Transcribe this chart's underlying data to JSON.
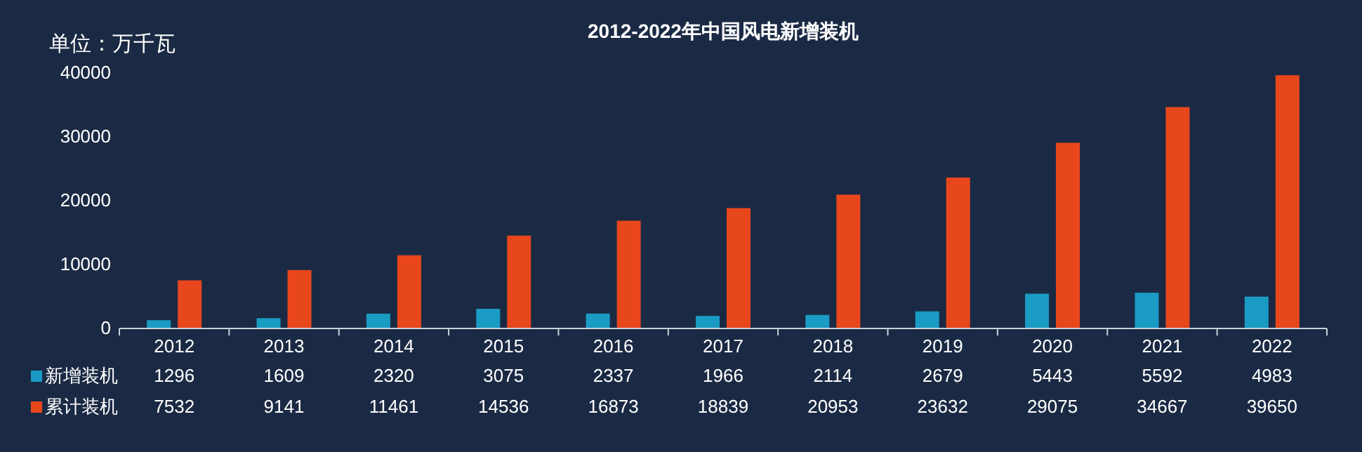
{
  "chart_data": {
    "type": "bar",
    "title": "2012-2022年中国风电新增装机",
    "ylabel": "单位：万千瓦",
    "categories": [
      "2012",
      "2013",
      "2014",
      "2015",
      "2016",
      "2017",
      "2018",
      "2019",
      "2020",
      "2021",
      "2022"
    ],
    "series": [
      {
        "name": "新增装机",
        "color": "#1a9bc4",
        "values": [
          1296,
          1609,
          2320,
          3075,
          2337,
          1966,
          2114,
          2679,
          5443,
          5592,
          4983
        ]
      },
      {
        "name": "累计装机",
        "color": "#e8471c",
        "values": [
          7532,
          9141,
          11461,
          14536,
          16873,
          18839,
          20953,
          23632,
          29075,
          34667,
          39650
        ]
      }
    ],
    "ylim": [
      0,
      40000
    ],
    "yticks": [
      0,
      10000,
      20000,
      30000,
      40000
    ],
    "data_labels": true,
    "legend": "bottom"
  }
}
